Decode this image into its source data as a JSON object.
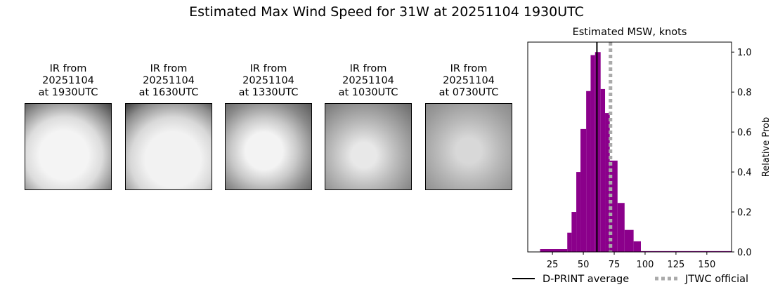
{
  "title": "Estimated Max Wind Speed for 31W at 20251104 1930UTC",
  "ir_panels": [
    {
      "line1": "IR from",
      "line2": "20251104",
      "line3": "at 1930UTC"
    },
    {
      "line1": "IR from",
      "line2": "20251104",
      "line3": "at 1630UTC"
    },
    {
      "line1": "IR from",
      "line2": "20251104",
      "line3": "at 1330UTC"
    },
    {
      "line1": "IR from",
      "line2": "20251104",
      "line3": "at 1030UTC"
    },
    {
      "line1": "IR from",
      "line2": "20251104",
      "line3": "at 0730UTC"
    }
  ],
  "chart_data": {
    "type": "bar",
    "title": "Estimated MSW, knots",
    "xlabel": "",
    "ylabel": "Relative Prob",
    "xlim": [
      5,
      170
    ],
    "ylim": [
      0,
      1.05
    ],
    "xticks": [
      25,
      50,
      75,
      100,
      125,
      150
    ],
    "yticks": [
      0.0,
      0.2,
      0.4,
      0.6,
      0.8,
      1.0
    ],
    "ytick_labels": [
      "0.0",
      "0.2",
      "0.4",
      "0.6",
      "0.8",
      "1.0"
    ],
    "y_axis_side": "right",
    "bar_color": "#8b008b",
    "bins": [
      {
        "x0": 15,
        "x1": 37,
        "value": 0.014
      },
      {
        "x0": 37,
        "x1": 40.5,
        "value": 0.096
      },
      {
        "x0": 40.5,
        "x1": 44.3,
        "value": 0.2
      },
      {
        "x0": 44.3,
        "x1": 47.7,
        "value": 0.4
      },
      {
        "x0": 47.7,
        "x1": 52.3,
        "value": 0.615
      },
      {
        "x0": 52.3,
        "x1": 55.9,
        "value": 0.805
      },
      {
        "x0": 55.9,
        "x1": 59.5,
        "value": 0.985
      },
      {
        "x0": 59.5,
        "x1": 64,
        "value": 1.0
      },
      {
        "x0": 64,
        "x1": 67.6,
        "value": 0.815
      },
      {
        "x0": 67.6,
        "x1": 71.4,
        "value": 0.695
      },
      {
        "x0": 71.4,
        "x1": 77.7,
        "value": 0.457
      },
      {
        "x0": 77.7,
        "x1": 83.4,
        "value": 0.245
      },
      {
        "x0": 83.4,
        "x1": 90.7,
        "value": 0.11
      },
      {
        "x0": 90.7,
        "x1": 96.6,
        "value": 0.053
      },
      {
        "x0": 96.6,
        "x1": 170,
        "value": 0.004
      }
    ],
    "lines": [
      {
        "name": "D-PRINT average",
        "x": 61,
        "color": "#000000",
        "style": "solid"
      },
      {
        "name": "JTWC official",
        "x": 72,
        "color": "#aaaaaa",
        "style": "dotted"
      }
    ],
    "legend_placement": "bottom"
  }
}
